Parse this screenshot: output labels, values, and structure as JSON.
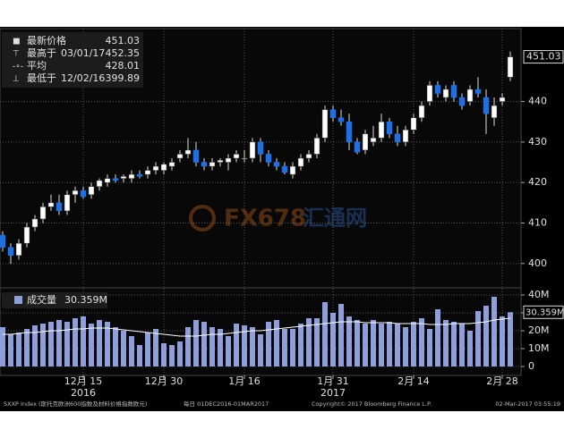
{
  "chart_data": [
    {
      "type": "candlestick",
      "categories": [
        null,
        null,
        null,
        null,
        null,
        null,
        null,
        null,
        null,
        null,
        "12月 15",
        null,
        null,
        null,
        null,
        null,
        null,
        null,
        null,
        null,
        "12月 30",
        null,
        null,
        null,
        null,
        null,
        null,
        null,
        null,
        null,
        "1月 16",
        null,
        null,
        null,
        null,
        null,
        null,
        null,
        null,
        null,
        null,
        "1月 31",
        null,
        null,
        null,
        null,
        null,
        null,
        null,
        null,
        null,
        "2月 14",
        null,
        null,
        null,
        null,
        null,
        null,
        null,
        null,
        null,
        null,
        "2月 28",
        null
      ],
      "category_years": [
        null,
        null,
        null,
        null,
        null,
        null,
        null,
        null,
        null,
        null,
        "2016",
        null,
        null,
        null,
        null,
        null,
        null,
        null,
        null,
        null,
        null,
        null,
        null,
        null,
        null,
        null,
        null,
        null,
        null,
        null,
        null,
        null,
        null,
        null,
        null,
        null,
        null,
        null,
        null,
        null,
        null,
        "2017",
        null,
        null,
        null,
        null,
        null,
        null,
        null,
        null,
        null,
        null,
        null,
        null,
        null,
        null,
        null,
        null,
        null,
        null,
        null,
        null,
        null,
        null
      ],
      "open": [
        407,
        404,
        402,
        405,
        409,
        411,
        414,
        415,
        413,
        417,
        418,
        417,
        419,
        420,
        421,
        421,
        421,
        422,
        422,
        423,
        423,
        424,
        426,
        427,
        428,
        425,
        424,
        425,
        425,
        426,
        426,
        426,
        430,
        427,
        425,
        424,
        422,
        424,
        426,
        427,
        431,
        438,
        436,
        435,
        430,
        428,
        430,
        431,
        435,
        432,
        430,
        433,
        436,
        440,
        444,
        441,
        444,
        441,
        440,
        443,
        441,
        436,
        440,
        446
      ],
      "high": [
        408,
        405,
        406,
        410,
        412,
        415,
        417,
        417,
        418,
        419,
        419,
        420,
        421,
        422,
        422,
        422,
        423,
        423,
        424,
        425,
        425,
        426,
        428,
        431,
        430,
        426,
        426,
        426,
        427,
        428,
        428,
        431,
        431,
        428,
        426,
        425,
        425,
        427,
        428,
        432,
        439,
        439,
        438,
        437,
        431,
        433,
        434,
        437,
        436,
        434,
        434,
        437,
        440,
        445,
        445,
        444,
        445,
        442,
        444,
        446,
        443,
        441,
        442,
        452.35
      ],
      "low": [
        403,
        399.89,
        401,
        404,
        408,
        410,
        413,
        412,
        412,
        415,
        416,
        416,
        418,
        419,
        420,
        420,
        420,
        421,
        421,
        422,
        422,
        423,
        425,
        426,
        424,
        423,
        423,
        424,
        423,
        425,
        425,
        425,
        425,
        424,
        423,
        422,
        421,
        423,
        425,
        426,
        430,
        435,
        434,
        428,
        427,
        427,
        429,
        430,
        431,
        429,
        429,
        432,
        435,
        439,
        441,
        440,
        440,
        438,
        439,
        441,
        432,
        434,
        439,
        445
      ],
      "close": [
        404,
        402,
        405,
        409,
        411,
        414,
        415,
        413,
        417,
        418,
        416.5,
        419,
        420.5,
        421,
        420.5,
        421.5,
        422,
        421.5,
        423,
        424,
        424.5,
        425,
        427,
        428,
        425,
        424,
        425,
        425.5,
        426,
        427,
        426,
        430,
        427,
        425,
        424,
        422.5,
        424,
        426,
        427,
        431,
        438,
        436,
        435,
        430,
        427.5,
        432,
        431,
        435,
        432,
        430,
        433,
        436,
        439,
        444,
        442,
        443,
        441,
        439,
        443,
        442,
        437,
        439,
        441,
        451.03
      ],
      "up_color": "#ffffff",
      "down_color": "#1f6fe5",
      "ylim": [
        394,
        458
      ],
      "yticks": [
        400,
        410,
        420,
        430,
        440
      ],
      "grid": true,
      "legend": [
        {
          "name": "最新价格",
          "value": 451.03
        },
        {
          "name": "最高于",
          "date": "03/01/17",
          "value": 452.35
        },
        {
          "name": "平均",
          "value": 428.01
        },
        {
          "name": "最低于",
          "date": "12/02/16",
          "value": 399.89
        }
      ]
    },
    {
      "type": "bar",
      "name": "成交量",
      "value_label": "30.359M",
      "color": "#8f9fdc",
      "values": [
        22,
        18,
        19,
        21,
        23,
        24,
        25,
        26,
        25,
        27,
        28,
        24,
        26,
        25,
        22,
        20,
        17,
        12,
        19,
        21,
        13,
        12,
        14,
        22,
        26,
        25,
        22,
        21,
        17,
        24,
        23,
        22,
        18,
        25,
        26,
        21,
        21,
        24,
        27,
        27,
        36,
        30,
        35,
        28,
        26,
        24,
        26,
        24,
        25,
        24,
        22,
        25,
        27,
        21,
        32,
        26,
        25,
        24,
        20,
        31,
        34,
        39,
        28,
        30.359
      ],
      "line": {
        "color": "#ffffff",
        "values": [
          18,
          18,
          18.5,
          19,
          19,
          19.5,
          20,
          20,
          20.5,
          21,
          21,
          21.5,
          21.5,
          21.5,
          21,
          20.5,
          20,
          19.5,
          19,
          18.5,
          18,
          17.5,
          17,
          17,
          17,
          17.5,
          18,
          18,
          18.5,
          19,
          19.5,
          20,
          20,
          20.5,
          21,
          21.5,
          22,
          22.5,
          23,
          23.5,
          24,
          24.5,
          25,
          25,
          25,
          24.5,
          24.5,
          24.5,
          24.5,
          24,
          24,
          24,
          24,
          23.5,
          23.5,
          23.5,
          24,
          24,
          24,
          24.5,
          25,
          26,
          26.5,
          27
        ]
      },
      "ylim": [
        -5,
        44
      ],
      "yticks": [
        0,
        {
          "value": 10,
          "label": "10M"
        },
        {
          "value": 20,
          "label": "20M"
        },
        {
          "value": 30,
          "label": "30M"
        },
        {
          "value": 40,
          "label": "40M"
        }
      ],
      "grid": true
    }
  ],
  "watermark": {
    "logo": "FX678",
    "name": "汇通网"
  },
  "footer": {
    "index": "SXXP Index (斯托克欧洲600指数及材料价格指数欧元)",
    "period": "每日 01DEC2016-01MAR2017",
    "copyright": "Copyright© 2017 Bloomberg Finance L.P.",
    "timestamp": "02-Mar-2017 03:55:19"
  }
}
